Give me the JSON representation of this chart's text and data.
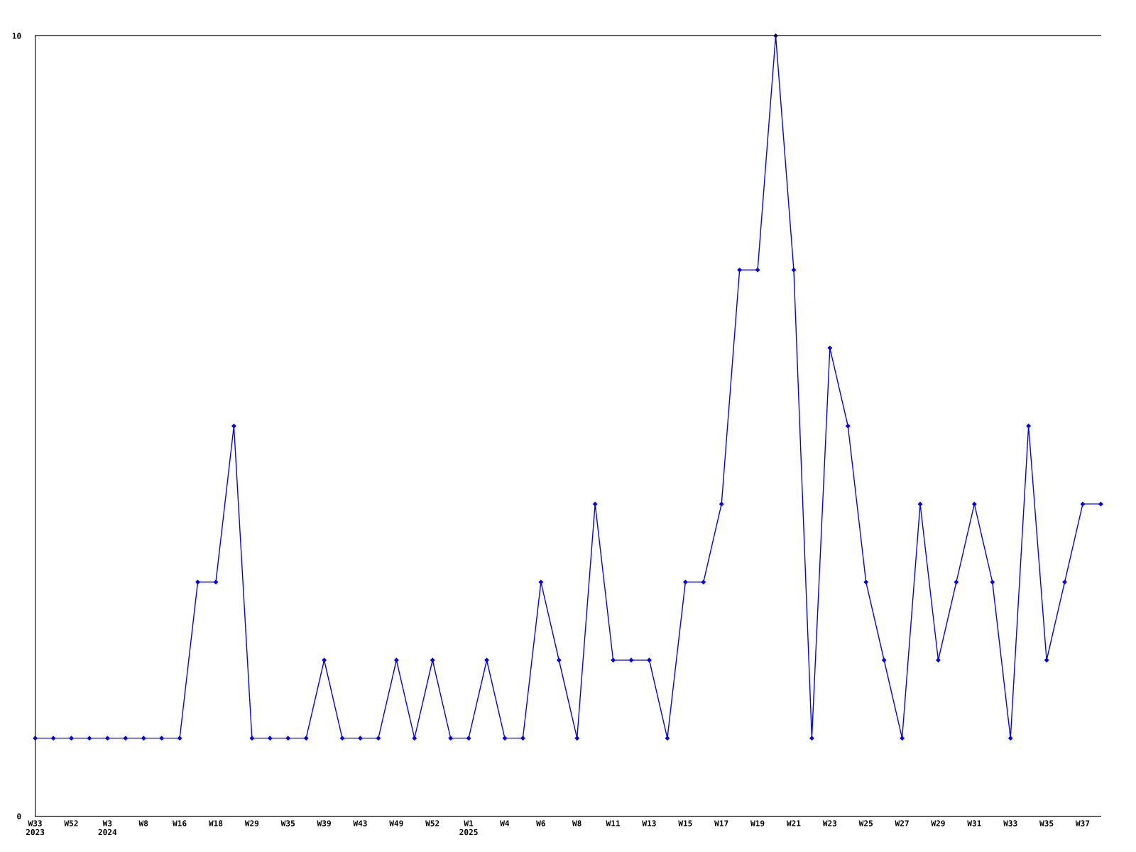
{
  "chart_data": {
    "type": "line",
    "categories": [
      "W33\n2023",
      null,
      "W52",
      null,
      "W3\n2024",
      null,
      "W8",
      null,
      "W16",
      null,
      "W18",
      null,
      "W29",
      null,
      "W35",
      null,
      "W39",
      null,
      "W43",
      null,
      "W49",
      null,
      "W52",
      null,
      "W1\n2025",
      null,
      "W4",
      null,
      "W6",
      null,
      "W8",
      null,
      "W11",
      null,
      "W13",
      null,
      "W15",
      null,
      "W17",
      null,
      "W19",
      null,
      "W21",
      null,
      "W23",
      null,
      "W25",
      null,
      "W27",
      null,
      "W29",
      null,
      "W31",
      null,
      "W33",
      null,
      "W35",
      null,
      "W37",
      null
    ],
    "series": [
      {
        "color": "#0000ff",
        "values": [
          1,
          1,
          1,
          1,
          1,
          1,
          1,
          1,
          1,
          3,
          3,
          5,
          1,
          1,
          1,
          1,
          2,
          1,
          1,
          1,
          2,
          1,
          2,
          1,
          1,
          2,
          1,
          1,
          3,
          2,
          1,
          4,
          2,
          2,
          2,
          1,
          3,
          3,
          4,
          7,
          7,
          10,
          7,
          1,
          6,
          5,
          3,
          2,
          1,
          4,
          2,
          3,
          4,
          3,
          1,
          5,
          2,
          3,
          4,
          4
        ]
      }
    ],
    "ylim": [
      0,
      10
    ],
    "yticks": [
      0,
      10
    ],
    "grid": false,
    "marker": "diamond",
    "line_style": "solid"
  }
}
